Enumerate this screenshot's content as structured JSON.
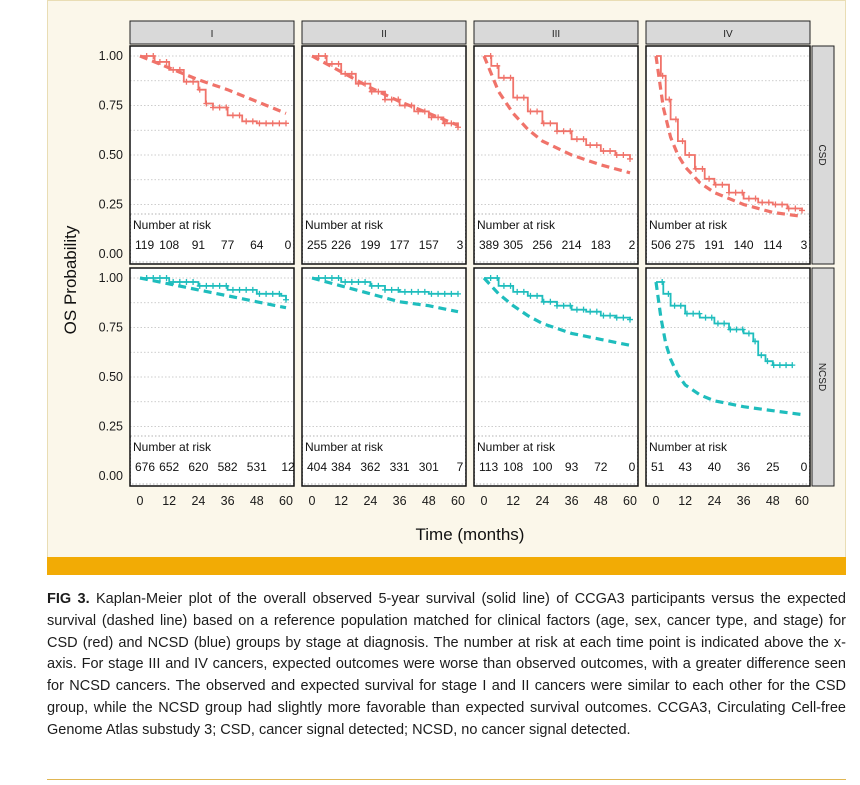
{
  "chart_data": {
    "type": "line",
    "title": "",
    "xlabel": "Time (months)",
    "ylabel": "OS Probability",
    "xlim": [
      0,
      60
    ],
    "ylim": [
      0,
      1
    ],
    "x_ticks": [
      "0",
      "12",
      "24",
      "36",
      "48",
      "60"
    ],
    "y_ticks": [
      "0.00",
      "0.25",
      "0.50",
      "0.75",
      "1.00"
    ],
    "risk_table_title": "Number at risk",
    "risk_times": [
      0,
      12,
      24,
      36,
      48,
      60
    ],
    "colors": {
      "CSD": "#f0736a",
      "NCSD": "#1fbdbd"
    },
    "line_styles": {
      "observed": "solid",
      "expected": "dashed"
    },
    "stages": [
      "I",
      "II",
      "III",
      "IV"
    ],
    "groups": [
      "CSD",
      "NCSD"
    ],
    "panels": [
      {
        "group": "CSD",
        "stage": "I",
        "observed": [
          [
            0,
            1.0
          ],
          [
            6,
            0.97
          ],
          [
            12,
            0.93
          ],
          [
            18,
            0.87
          ],
          [
            24,
            0.83
          ],
          [
            27,
            0.76
          ],
          [
            30,
            0.74
          ],
          [
            36,
            0.7
          ],
          [
            42,
            0.67
          ],
          [
            48,
            0.66
          ],
          [
            60,
            0.66
          ]
        ],
        "expected": [
          [
            0,
            1.0
          ],
          [
            12,
            0.94
          ],
          [
            24,
            0.88
          ],
          [
            36,
            0.83
          ],
          [
            48,
            0.77
          ],
          [
            60,
            0.71
          ]
        ],
        "at_risk": [
          "119",
          "108",
          "91",
          "77",
          "64",
          "0"
        ]
      },
      {
        "group": "CSD",
        "stage": "II",
        "observed": [
          [
            0,
            1.0
          ],
          [
            6,
            0.96
          ],
          [
            12,
            0.91
          ],
          [
            18,
            0.86
          ],
          [
            24,
            0.82
          ],
          [
            30,
            0.78
          ],
          [
            36,
            0.75
          ],
          [
            42,
            0.72
          ],
          [
            48,
            0.69
          ],
          [
            54,
            0.66
          ],
          [
            60,
            0.64
          ]
        ],
        "expected": [
          [
            0,
            1.0
          ],
          [
            12,
            0.92
          ],
          [
            24,
            0.84
          ],
          [
            36,
            0.77
          ],
          [
            48,
            0.71
          ],
          [
            60,
            0.65
          ]
        ],
        "at_risk": [
          "255",
          "226",
          "199",
          "177",
          "157",
          "3"
        ]
      },
      {
        "group": "CSD",
        "stage": "III",
        "observed": [
          [
            0,
            1.0
          ],
          [
            3,
            0.95
          ],
          [
            6,
            0.89
          ],
          [
            12,
            0.79
          ],
          [
            18,
            0.72
          ],
          [
            24,
            0.66
          ],
          [
            30,
            0.62
          ],
          [
            36,
            0.58
          ],
          [
            42,
            0.55
          ],
          [
            48,
            0.52
          ],
          [
            54,
            0.5
          ],
          [
            60,
            0.48
          ]
        ],
        "expected": [
          [
            0,
            1.0
          ],
          [
            6,
            0.82
          ],
          [
            12,
            0.71
          ],
          [
            18,
            0.63
          ],
          [
            24,
            0.57
          ],
          [
            36,
            0.5
          ],
          [
            48,
            0.45
          ],
          [
            60,
            0.41
          ]
        ],
        "at_risk": [
          "389",
          "305",
          "256",
          "214",
          "183",
          "2"
        ]
      },
      {
        "group": "CSD",
        "stage": "IV",
        "observed": [
          [
            0,
            1.0
          ],
          [
            2,
            0.9
          ],
          [
            4,
            0.78
          ],
          [
            6,
            0.68
          ],
          [
            9,
            0.57
          ],
          [
            12,
            0.5
          ],
          [
            16,
            0.43
          ],
          [
            20,
            0.38
          ],
          [
            24,
            0.35
          ],
          [
            30,
            0.31
          ],
          [
            36,
            0.28
          ],
          [
            42,
            0.26
          ],
          [
            48,
            0.25
          ],
          [
            54,
            0.23
          ],
          [
            60,
            0.22
          ]
        ],
        "expected": [
          [
            0,
            1.0
          ],
          [
            3,
            0.74
          ],
          [
            6,
            0.59
          ],
          [
            9,
            0.5
          ],
          [
            12,
            0.44
          ],
          [
            18,
            0.36
          ],
          [
            24,
            0.31
          ],
          [
            36,
            0.25
          ],
          [
            48,
            0.21
          ],
          [
            60,
            0.19
          ]
        ],
        "at_risk": [
          "506",
          "275",
          "191",
          "140",
          "114",
          "3"
        ]
      },
      {
        "group": "NCSD",
        "stage": "I",
        "observed": [
          [
            0,
            1.0
          ],
          [
            12,
            0.98
          ],
          [
            24,
            0.96
          ],
          [
            36,
            0.94
          ],
          [
            48,
            0.92
          ],
          [
            58,
            0.91
          ],
          [
            60,
            0.89
          ]
        ],
        "expected": [
          [
            0,
            1.0
          ],
          [
            12,
            0.97
          ],
          [
            24,
            0.94
          ],
          [
            36,
            0.91
          ],
          [
            48,
            0.88
          ],
          [
            60,
            0.85
          ]
        ],
        "at_risk": [
          "676",
          "652",
          "620",
          "582",
          "531",
          "12"
        ]
      },
      {
        "group": "NCSD",
        "stage": "II",
        "observed": [
          [
            0,
            1.0
          ],
          [
            12,
            0.98
          ],
          [
            24,
            0.96
          ],
          [
            30,
            0.94
          ],
          [
            36,
            0.93
          ],
          [
            48,
            0.92
          ],
          [
            60,
            0.92
          ]
        ],
        "expected": [
          [
            0,
            1.0
          ],
          [
            12,
            0.96
          ],
          [
            24,
            0.92
          ],
          [
            36,
            0.88
          ],
          [
            48,
            0.86
          ],
          [
            60,
            0.83
          ]
        ],
        "at_risk": [
          "404",
          "384",
          "362",
          "331",
          "301",
          "7"
        ]
      },
      {
        "group": "NCSD",
        "stage": "III",
        "observed": [
          [
            0,
            1.0
          ],
          [
            6,
            0.96
          ],
          [
            12,
            0.93
          ],
          [
            18,
            0.91
          ],
          [
            24,
            0.88
          ],
          [
            30,
            0.86
          ],
          [
            36,
            0.84
          ],
          [
            42,
            0.83
          ],
          [
            48,
            0.81
          ],
          [
            54,
            0.8
          ],
          [
            60,
            0.79
          ]
        ],
        "expected": [
          [
            0,
            1.0
          ],
          [
            6,
            0.92
          ],
          [
            12,
            0.86
          ],
          [
            18,
            0.81
          ],
          [
            24,
            0.77
          ],
          [
            36,
            0.72
          ],
          [
            48,
            0.69
          ],
          [
            60,
            0.66
          ]
        ],
        "at_risk": [
          "113",
          "108",
          "100",
          "93",
          "72",
          "0"
        ]
      },
      {
        "group": "NCSD",
        "stage": "IV",
        "observed": [
          [
            0,
            0.98
          ],
          [
            3,
            0.92
          ],
          [
            6,
            0.86
          ],
          [
            12,
            0.82
          ],
          [
            18,
            0.8
          ],
          [
            24,
            0.77
          ],
          [
            30,
            0.74
          ],
          [
            36,
            0.72
          ],
          [
            40,
            0.68
          ],
          [
            42,
            0.61
          ],
          [
            45,
            0.58
          ],
          [
            48,
            0.56
          ],
          [
            56,
            0.56
          ]
        ],
        "expected": [
          [
            0,
            0.98
          ],
          [
            2,
            0.8
          ],
          [
            4,
            0.67
          ],
          [
            6,
            0.59
          ],
          [
            9,
            0.51
          ],
          [
            12,
            0.46
          ],
          [
            18,
            0.41
          ],
          [
            24,
            0.38
          ],
          [
            36,
            0.35
          ],
          [
            48,
            0.33
          ],
          [
            60,
            0.31
          ]
        ],
        "at_risk": [
          "51",
          "43",
          "40",
          "36",
          "25",
          "0"
        ]
      }
    ]
  },
  "caption": {
    "label": "FIG 3.",
    "text": "Kaplan-Meier plot of the overall observed 5-year survival (solid line) of CCGA3 participants versus the expected survival (dashed line) based on a reference population matched for clinical factors (age, sex, cancer type, and stage) for CSD (red) and NCSD (blue) groups by stage at diagnosis. The number at risk at each time point is indicated above the x-axis. For stage III and IV cancers, expected outcomes were worse than observed outcomes, with a greater difference seen for NCSD cancers. The observed and expected survival for stage I and II cancers were similar to each other for the CSD group, while the NCSD group had slightly more favorable than expected survival outcomes. CCGA3, Circulating Cell-free Genome Atlas substudy 3; CSD, cancer signal detected; NCSD, no cancer signal detected."
  }
}
